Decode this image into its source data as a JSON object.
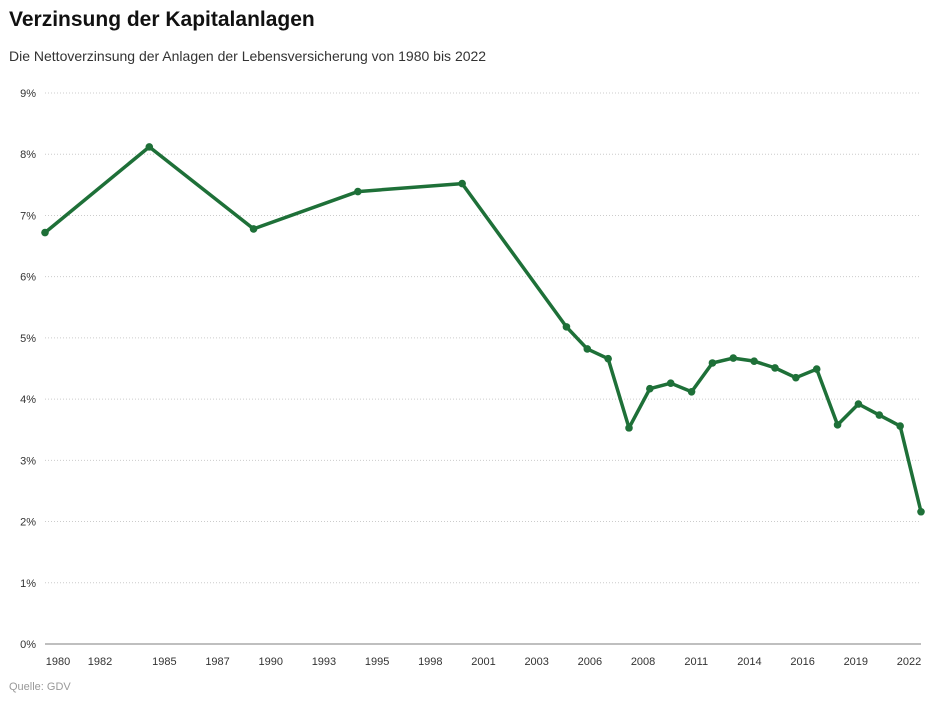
{
  "chart_data": {
    "type": "line",
    "title": "Verzinsung der Kapitalanlagen",
    "subtitle": "Die Nettoverzinsung der Anlagen der Lebensversicherung von 1980 bis 2022",
    "source": "Quelle: GDV",
    "xlabel": "",
    "ylabel": "",
    "x": [
      1980,
      1985,
      1990,
      1995,
      2000,
      2005,
      2006,
      2007,
      2008,
      2009,
      2010,
      2011,
      2012,
      2013,
      2014,
      2015,
      2016,
      2017,
      2018,
      2019,
      2020,
      2021,
      2022
    ],
    "series": [
      {
        "values": [
          6.72,
          8.12,
          6.78,
          7.39,
          7.52,
          5.18,
          4.82,
          4.66,
          3.53,
          4.17,
          4.26,
          4.12,
          4.59,
          4.67,
          4.62,
          4.51,
          4.35,
          4.49,
          3.58,
          3.92,
          3.74,
          3.56,
          2.16
        ],
        "color": "#1e7038"
      }
    ],
    "xlim": [
      1980,
      2022
    ],
    "ylim": [
      0,
      9
    ],
    "x_tick_labels": [
      "1980",
      "1982",
      "1985",
      "1987",
      "1990",
      "1993",
      "1995",
      "1998",
      "2001",
      "2003",
      "2006",
      "2008",
      "2011",
      "2014",
      "2016",
      "2019",
      "2022"
    ],
    "y_tick_labels": [
      "0%",
      "1%",
      "2%",
      "3%",
      "4%",
      "5%",
      "6%",
      "7%",
      "8%",
      "9%"
    ],
    "grid": true,
    "legend": "none"
  }
}
